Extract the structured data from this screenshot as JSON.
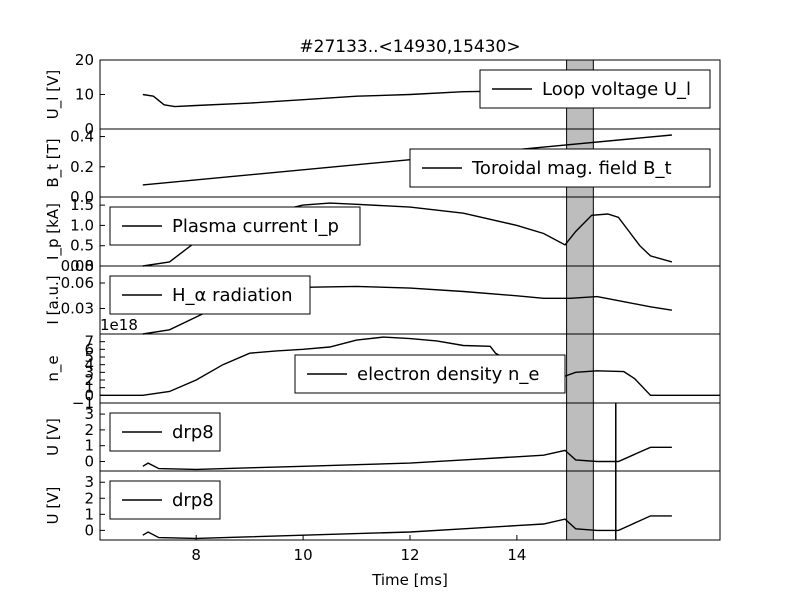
{
  "chart_data": {
    "type": "line",
    "title": "#27133..<14930,15430>",
    "xlabel": "Time [ms]",
    "xlim": [
      6.2,
      17.8
    ],
    "xticks": [
      8,
      10,
      12,
      14
    ],
    "highlight_span": [
      14.93,
      15.43
    ],
    "marker_line_x": 15.85,
    "panels": [
      {
        "ylabel": "U_l [V]",
        "ylim": [
          0,
          20
        ],
        "yticks": [
          "0",
          "10",
          "20"
        ],
        "legend": "Loop voltage U_l",
        "legend_pos": "upper-right",
        "series": [
          {
            "x": [
              7.0,
              7.2,
              7.4,
              7.6,
              8,
              9,
              10,
              11,
              12,
              13,
              14,
              14.6
            ],
            "y": [
              10,
              9.5,
              7,
              6.5,
              6.8,
              7.5,
              8.5,
              9.5,
              10,
              10.8,
              11,
              11
            ]
          }
        ]
      },
      {
        "ylabel": "B_t [T]",
        "ylim": [
          0,
          0.45
        ],
        "yticks": [
          "0.0",
          "0.2",
          "0.4"
        ],
        "legend": "Toroidal mag. field B_t",
        "legend_pos": "lower-right",
        "series": [
          {
            "x": [
              7.0,
              16.9
            ],
            "y": [
              0.08,
              0.41
            ]
          }
        ]
      },
      {
        "ylabel": "I_p [kA]",
        "ylim": [
          0,
          1.7
        ],
        "yticks": [
          "0.0",
          "0.5",
          "1.0",
          "1.5"
        ],
        "legend": "Plasma current I_p",
        "legend_pos": "upper-left",
        "series": [
          {
            "x": [
              7.0,
              7.5,
              8,
              9,
              10,
              10.5,
              11,
              12,
              13,
              14,
              14.5,
              14.9,
              15.1,
              15.4,
              15.7,
              15.9,
              16.1,
              16.3,
              16.5,
              16.9
            ],
            "y": [
              0,
              0.1,
              0.6,
              1.2,
              1.5,
              1.55,
              1.52,
              1.45,
              1.3,
              1.0,
              0.8,
              0.52,
              0.85,
              1.25,
              1.28,
              1.2,
              0.85,
              0.5,
              0.25,
              0.1
            ]
          }
        ]
      },
      {
        "ylabel": "I [a.u.]",
        "ylim": [
          0,
          0.08
        ],
        "yticks": [
          "0.03",
          "0.06",
          "0.08"
        ],
        "legend": "H_α radiation",
        "legend_pos": "upper-left",
        "series": [
          {
            "x": [
              7.0,
              7.5,
              8,
              8.5,
              9,
              10,
              11,
              12,
              13,
              14,
              14.5,
              15,
              15.5,
              16,
              16.5,
              16.9
            ],
            "y": [
              0,
              0.005,
              0.02,
              0.035,
              0.045,
              0.055,
              0.056,
              0.054,
              0.05,
              0.045,
              0.042,
              0.042,
              0.044,
              0.038,
              0.032,
              0.028
            ]
          }
        ]
      },
      {
        "ylabel": "n_e",
        "ylim": [
          -1,
          8
        ],
        "yticks": [
          "−1",
          "0",
          "1",
          "2",
          "3",
          "4",
          "5",
          "6",
          "7"
        ],
        "offset_label": "1e18",
        "legend": "electron density n_e",
        "legend_pos": "lower-center",
        "series": [
          {
            "x": [
              6.2,
              7,
              7.5,
              8,
              8.5,
              9,
              9.5,
              10,
              10.5,
              11,
              11.5,
              12,
              12.5,
              13,
              13.5,
              13.6,
              14,
              14.5,
              14.9,
              15.1,
              15.5,
              16,
              16.2,
              16.5,
              17.8
            ],
            "y": [
              0,
              0,
              0.5,
              2,
              4,
              5.5,
              5.8,
              6,
              6.3,
              7.2,
              7.6,
              7.4,
              7.1,
              6.5,
              6.4,
              5.5,
              4,
              3,
              2.5,
              3,
              3.2,
              3.1,
              2.2,
              0,
              0
            ]
          }
        ]
      },
      {
        "ylabel": "U [V]",
        "ylim": [
          -0.6,
          3.7
        ],
        "yticks": [
          "0",
          "1",
          "2",
          "3"
        ],
        "legend": "drp8",
        "legend_pos": "upper-left",
        "series": [
          {
            "x": [
              7.0,
              7.1,
              7.3,
              8,
              9,
              10,
              11,
              12,
              13,
              14,
              14.5,
              14.9,
              15.1,
              15.5,
              15.9,
              16.1,
              16.3,
              16.5,
              16.9
            ],
            "y": [
              -0.3,
              -0.1,
              -0.45,
              -0.5,
              -0.4,
              -0.3,
              -0.2,
              -0.1,
              0.1,
              0.3,
              0.4,
              0.7,
              0.1,
              0.0,
              0.0,
              0.3,
              0.6,
              0.9,
              0.9
            ]
          }
        ]
      },
      {
        "ylabel": "U [V]",
        "ylim": [
          -0.6,
          3.7
        ],
        "yticks": [
          "0",
          "1",
          "2",
          "3"
        ],
        "legend": "drp8",
        "legend_pos": "upper-left",
        "series": [
          {
            "x": [
              7.0,
              7.1,
              7.3,
              8,
              9,
              10,
              11,
              12,
              13,
              14,
              14.5,
              14.9,
              15.1,
              15.5,
              15.9,
              16.1,
              16.3,
              16.5,
              16.9
            ],
            "y": [
              -0.3,
              -0.1,
              -0.45,
              -0.5,
              -0.4,
              -0.3,
              -0.2,
              -0.1,
              0.1,
              0.3,
              0.4,
              0.7,
              0.1,
              0.0,
              0.0,
              0.3,
              0.6,
              0.9,
              0.9
            ]
          }
        ]
      }
    ]
  }
}
